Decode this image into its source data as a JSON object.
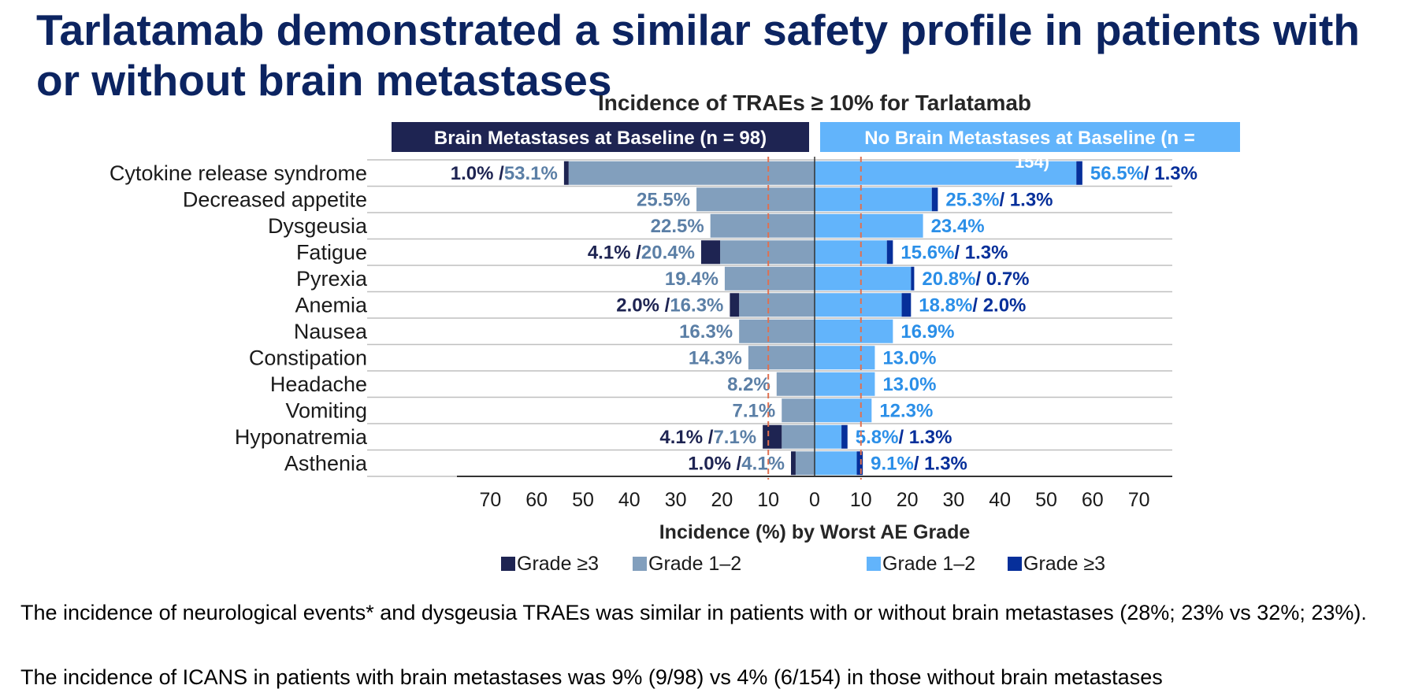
{
  "page": {
    "title": "Tarlatamab demonstrated a similar safety profile in patients with or without brain metastases",
    "notes": [
      "The incidence of neurological events* and dysgeusia TRAEs was similar in patients with or without brain metastases (28%; 23% vs 32%; 23%).",
      "The incidence of ICANS in patients with brain metastases was 9% (9/98) vs 4% (6/154) in those without brain metastases"
    ]
  },
  "colors": {
    "left_grade12": "#829fbd",
    "left_grade3": "#1e2452",
    "right_grade12": "#62b4fb",
    "right_grade3": "#062f9a",
    "left_header_bg": "#1e2452",
    "right_header_bg": "#62b4fb",
    "title": "#0c2461",
    "reference_line": "#e07050"
  },
  "chart_data": {
    "type": "bar",
    "orientation": "horizontal",
    "layout": "butterfly",
    "title": "Incidence of TRAEs ≥ 10% for Tarlatamab",
    "xlabel": "Incidence (%) by Worst AE Grade",
    "xlim": [
      0,
      70
    ],
    "xticks": [
      "70",
      "60",
      "50",
      "40",
      "30",
      "20",
      "10",
      "0",
      "10",
      "20",
      "30",
      "40",
      "50",
      "60",
      "70"
    ],
    "reference_line_x": 10,
    "groups": [
      {
        "side": "left",
        "label": "Brain Metastases at Baseline (n = 98)"
      },
      {
        "side": "right",
        "label": "No Brain Metastases at Baseline (n = 154)"
      }
    ],
    "legend": {
      "left": [
        "Grade ≥3",
        "Grade 1–2"
      ],
      "right": [
        "Grade 1–2",
        "Grade ≥3"
      ]
    },
    "categories": [
      "Cytokine release syndrome",
      "Decreased appetite",
      "Dysgeusia",
      "Fatigue",
      "Pyrexia",
      "Anemia",
      "Nausea",
      "Constipation",
      "Headache",
      "Vomiting",
      "Hyponatremia",
      "Asthenia"
    ],
    "series": [
      {
        "name": "Grade 1–2",
        "side": "left",
        "values": [
          53.1,
          25.5,
          22.5,
          20.4,
          19.4,
          16.3,
          16.3,
          14.3,
          8.2,
          7.1,
          7.1,
          4.1
        ]
      },
      {
        "name": "Grade ≥3",
        "side": "left",
        "values": [
          1.0,
          null,
          null,
          4.1,
          null,
          2.0,
          null,
          null,
          null,
          null,
          4.1,
          1.0
        ]
      },
      {
        "name": "Grade 1–2",
        "side": "right",
        "values": [
          56.5,
          25.3,
          23.4,
          15.6,
          20.8,
          18.8,
          16.9,
          13.0,
          13.0,
          12.3,
          5.8,
          9.1
        ]
      },
      {
        "name": "Grade ≥3",
        "side": "right",
        "values": [
          1.3,
          1.3,
          null,
          1.3,
          0.7,
          2.0,
          null,
          null,
          null,
          null,
          1.3,
          1.3
        ]
      }
    ]
  }
}
